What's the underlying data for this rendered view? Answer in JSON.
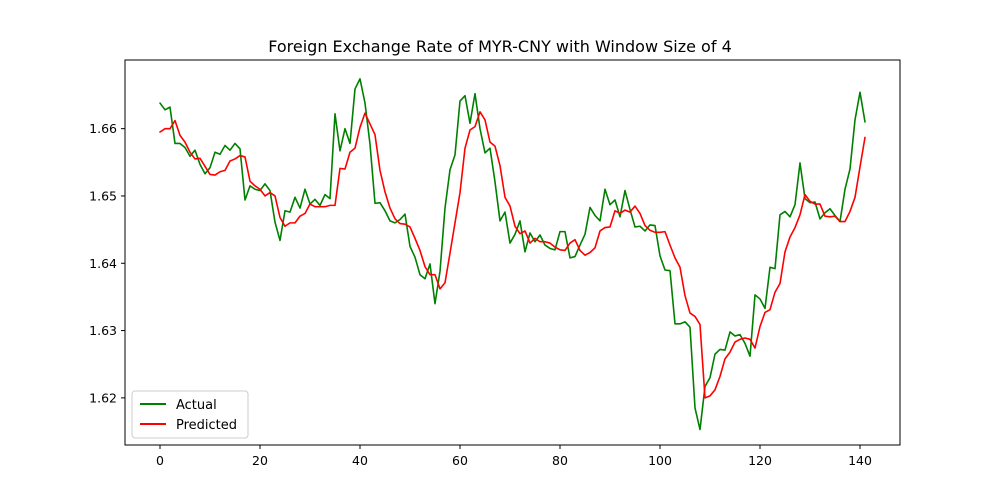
{
  "chart_data": {
    "type": "line",
    "title": "Foreign Exchange Rate of MYR-CNY with Window Size of 4",
    "xlabel": "",
    "ylabel": "",
    "xlim": [
      -7,
      148
    ],
    "ylim": [
      1.613,
      1.6702
    ],
    "xticks": [
      0,
      20,
      40,
      60,
      80,
      100,
      120,
      140
    ],
    "xtick_labels": [
      "0",
      "20",
      "40",
      "60",
      "80",
      "100",
      "120",
      "140"
    ],
    "yticks": [
      1.62,
      1.63,
      1.64,
      1.65,
      1.66
    ],
    "ytick_labels": [
      "1.62",
      "1.63",
      "1.64",
      "1.65",
      "1.66"
    ],
    "grid": false,
    "legend": {
      "position": "lower-left"
    },
    "series": [
      {
        "name": "Actual",
        "color": "#008000",
        "x": [
          0,
          1,
          2,
          3,
          4,
          5,
          6,
          7,
          8,
          9,
          10,
          11,
          12,
          13,
          14,
          15,
          16,
          17,
          18,
          19,
          20,
          21,
          22,
          23,
          24,
          25,
          26,
          27,
          28,
          29,
          30,
          31,
          32,
          33,
          34,
          35,
          36,
          37,
          38,
          39,
          40,
          41,
          42,
          43,
          44,
          45,
          46,
          47,
          48,
          49,
          50,
          51,
          52,
          53,
          54,
          55,
          56,
          57,
          58,
          59,
          60,
          61,
          62,
          63,
          64,
          65,
          66,
          67,
          68,
          69,
          70,
          71,
          72,
          73,
          74,
          75,
          76,
          77,
          78,
          79,
          80,
          81,
          82,
          83,
          84,
          85,
          86,
          87,
          88,
          89,
          90,
          91,
          92,
          93,
          94,
          95,
          96,
          97,
          98,
          99,
          100,
          101,
          102,
          103,
          104,
          105,
          106,
          107,
          108,
          109,
          110,
          111,
          112,
          113,
          114,
          115,
          116,
          117,
          118,
          119,
          120,
          121,
          122,
          123,
          124,
          125,
          126,
          127,
          128,
          129,
          130,
          131,
          132,
          133,
          134,
          135,
          136,
          137,
          138,
          139,
          140,
          141
        ],
        "values": [
          1.6638,
          1.6628,
          1.6632,
          1.6578,
          1.6578,
          1.6572,
          1.6559,
          1.6568,
          1.6547,
          1.6533,
          1.6542,
          1.6565,
          1.6562,
          1.6575,
          1.6568,
          1.6578,
          1.657,
          1.6494,
          1.6515,
          1.651,
          1.6508,
          1.6518,
          1.6508,
          1.6461,
          1.6434,
          1.6478,
          1.6476,
          1.6498,
          1.6482,
          1.651,
          1.6488,
          1.6495,
          1.6486,
          1.6502,
          1.6496,
          1.6622,
          1.6567,
          1.66,
          1.6578,
          1.6659,
          1.6674,
          1.6638,
          1.6577,
          1.6489,
          1.649,
          1.6478,
          1.6463,
          1.646,
          1.6465,
          1.6473,
          1.6425,
          1.6409,
          1.6383,
          1.6377,
          1.6399,
          1.634,
          1.6388,
          1.6482,
          1.6539,
          1.6561,
          1.6641,
          1.6649,
          1.6608,
          1.6652,
          1.66,
          1.6564,
          1.6571,
          1.6521,
          1.6463,
          1.6476,
          1.643,
          1.6443,
          1.6463,
          1.6417,
          1.6445,
          1.6432,
          1.6442,
          1.6427,
          1.6422,
          1.642,
          1.6447,
          1.6447,
          1.6408,
          1.641,
          1.6427,
          1.6443,
          1.6483,
          1.6471,
          1.6463,
          1.651,
          1.6487,
          1.6494,
          1.6469,
          1.6508,
          1.648,
          1.6454,
          1.6455,
          1.6448,
          1.6457,
          1.6456,
          1.6411,
          1.639,
          1.6389,
          1.631,
          1.631,
          1.6313,
          1.6305,
          1.6185,
          1.6153,
          1.6217,
          1.623,
          1.6265,
          1.6272,
          1.6271,
          1.6298,
          1.6292,
          1.6294,
          1.6281,
          1.6262,
          1.6353,
          1.6347,
          1.6333,
          1.6394,
          1.6392,
          1.6472,
          1.6477,
          1.6469,
          1.6487,
          1.6549,
          1.6496,
          1.649,
          1.6491,
          1.6466,
          1.6475,
          1.6481,
          1.6471,
          1.6462,
          1.651,
          1.654,
          1.6613,
          1.6654,
          1.661
        ]
      },
      {
        "name": "Predicted",
        "color": "#ff0000",
        "x": [
          0,
          1,
          2,
          3,
          4,
          5,
          6,
          7,
          8,
          9,
          10,
          11,
          12,
          13,
          14,
          15,
          16,
          17,
          18,
          19,
          20,
          21,
          22,
          23,
          24,
          25,
          26,
          27,
          28,
          29,
          30,
          31,
          32,
          33,
          34,
          35,
          36,
          37,
          38,
          39,
          40,
          41,
          42,
          43,
          44,
          45,
          46,
          47,
          48,
          49,
          50,
          51,
          52,
          53,
          54,
          55,
          56,
          57,
          58,
          59,
          60,
          61,
          62,
          63,
          64,
          65,
          66,
          67,
          68,
          69,
          70,
          71,
          72,
          73,
          74,
          75,
          76,
          77,
          78,
          79,
          80,
          81,
          82,
          83,
          84,
          85,
          86,
          87,
          88,
          89,
          90,
          91,
          92,
          93,
          94,
          95,
          96,
          97,
          98,
          99,
          100,
          101,
          102,
          103,
          104,
          105,
          106,
          107,
          108,
          109,
          110,
          111,
          112,
          113,
          114,
          115,
          116,
          117,
          118,
          119,
          120,
          121,
          122,
          123,
          124,
          125,
          126,
          127,
          128,
          129,
          130,
          131,
          132,
          133,
          134,
          135,
          136,
          137,
          138,
          139,
          140,
          141
        ],
        "values": [
          1.6595,
          1.66,
          1.66,
          1.6612,
          1.659,
          1.658,
          1.6565,
          1.6555,
          1.6556,
          1.6544,
          1.6532,
          1.6531,
          1.6536,
          1.6538,
          1.6552,
          1.6555,
          1.656,
          1.6558,
          1.6522,
          1.6515,
          1.651,
          1.65,
          1.6505,
          1.65,
          1.6468,
          1.6455,
          1.646,
          1.646,
          1.647,
          1.6474,
          1.6488,
          1.6484,
          1.6484,
          1.6484,
          1.6486,
          1.6486,
          1.6541,
          1.654,
          1.6565,
          1.6571,
          1.6602,
          1.6623,
          1.6607,
          1.6591,
          1.6538,
          1.6506,
          1.6482,
          1.6466,
          1.6459,
          1.6458,
          1.6454,
          1.6437,
          1.6419,
          1.6395,
          1.6383,
          1.6383,
          1.6362,
          1.6371,
          1.6415,
          1.646,
          1.6505,
          1.6571,
          1.6598,
          1.6603,
          1.6625,
          1.6613,
          1.658,
          1.6574,
          1.6545,
          1.6498,
          1.6485,
          1.6455,
          1.6444,
          1.6448,
          1.643,
          1.6437,
          1.6432,
          1.6432,
          1.643,
          1.6424,
          1.642,
          1.6419,
          1.643,
          1.6435,
          1.6419,
          1.6412,
          1.6416,
          1.6423,
          1.6448,
          1.6453,
          1.6454,
          1.6478,
          1.6474,
          1.6479,
          1.6476,
          1.6485,
          1.6474,
          1.6456,
          1.6449,
          1.6446,
          1.6446,
          1.6447,
          1.6427,
          1.6408,
          1.6394,
          1.6352,
          1.6326,
          1.6321,
          1.6309,
          1.62,
          1.6203,
          1.6212,
          1.6232,
          1.6258,
          1.6268,
          1.6283,
          1.6287,
          1.6289,
          1.6287,
          1.6274,
          1.6306,
          1.6327,
          1.6331,
          1.6357,
          1.637,
          1.6417,
          1.6439,
          1.6453,
          1.6472,
          1.6502,
          1.6492,
          1.6488,
          1.6488,
          1.647,
          1.6469,
          1.647,
          1.6462,
          1.6462,
          1.6477,
          1.6498,
          1.6543,
          1.6587
        ]
      }
    ]
  }
}
